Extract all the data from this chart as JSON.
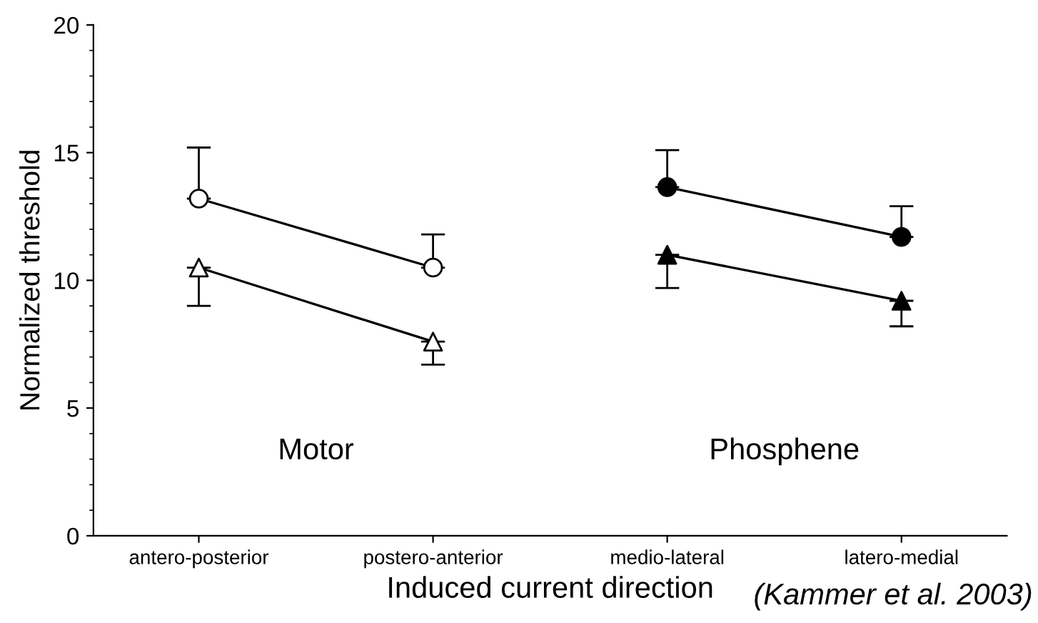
{
  "chart_data": {
    "type": "line",
    "xlabel": "Induced current direction",
    "ylabel": "Normalized threshold",
    "categories": [
      "antero-posterior",
      "postero-anterior",
      "medio-lateral",
      "latero-medial"
    ],
    "series": [
      {
        "color": "#000000",
        "marker": "circle",
        "colors": [
          "#ffffff",
          "#ffffff",
          null,
          null
        ],
        "values": [
          13.2,
          10.5,
          null,
          null
        ],
        "errors": [
          [
            13.2,
            15.2
          ],
          [
            10.5,
            11.8
          ],
          null,
          null
        ]
      },
      {
        "color": "#000000",
        "marker": "triangle",
        "colors": [
          "#ffffff",
          "#ffffff",
          null,
          null
        ],
        "values": [
          10.5,
          7.6,
          null,
          null
        ],
        "errors": [
          [
            9.0,
            10.5
          ],
          [
            6.7,
            7.6
          ],
          null,
          null
        ]
      },
      {
        "color": "#000000",
        "marker": "circle",
        "colors": [
          null,
          null,
          "#000000",
          "#000000"
        ],
        "values": [
          null,
          null,
          13.65,
          11.7
        ],
        "errors": [
          null,
          null,
          [
            13.65,
            15.1
          ],
          [
            11.7,
            12.9
          ]
        ]
      },
      {
        "color": "#000000",
        "marker": "triangle",
        "colors": [
          null,
          null,
          "#000000",
          "#000000"
        ],
        "values": [
          null,
          null,
          11.0,
          9.2
        ],
        "errors": [
          null,
          null,
          [
            9.7,
            11.0
          ],
          [
            8.2,
            9.2
          ]
        ]
      }
    ],
    "ylim": [
      0,
      20
    ],
    "yticks": [
      0,
      5,
      10,
      15,
      20
    ],
    "grid": false,
    "line_style": "solid",
    "annotations": [
      "Motor",
      "Phosphene",
      "(Kammer et al. 2003)"
    ]
  }
}
